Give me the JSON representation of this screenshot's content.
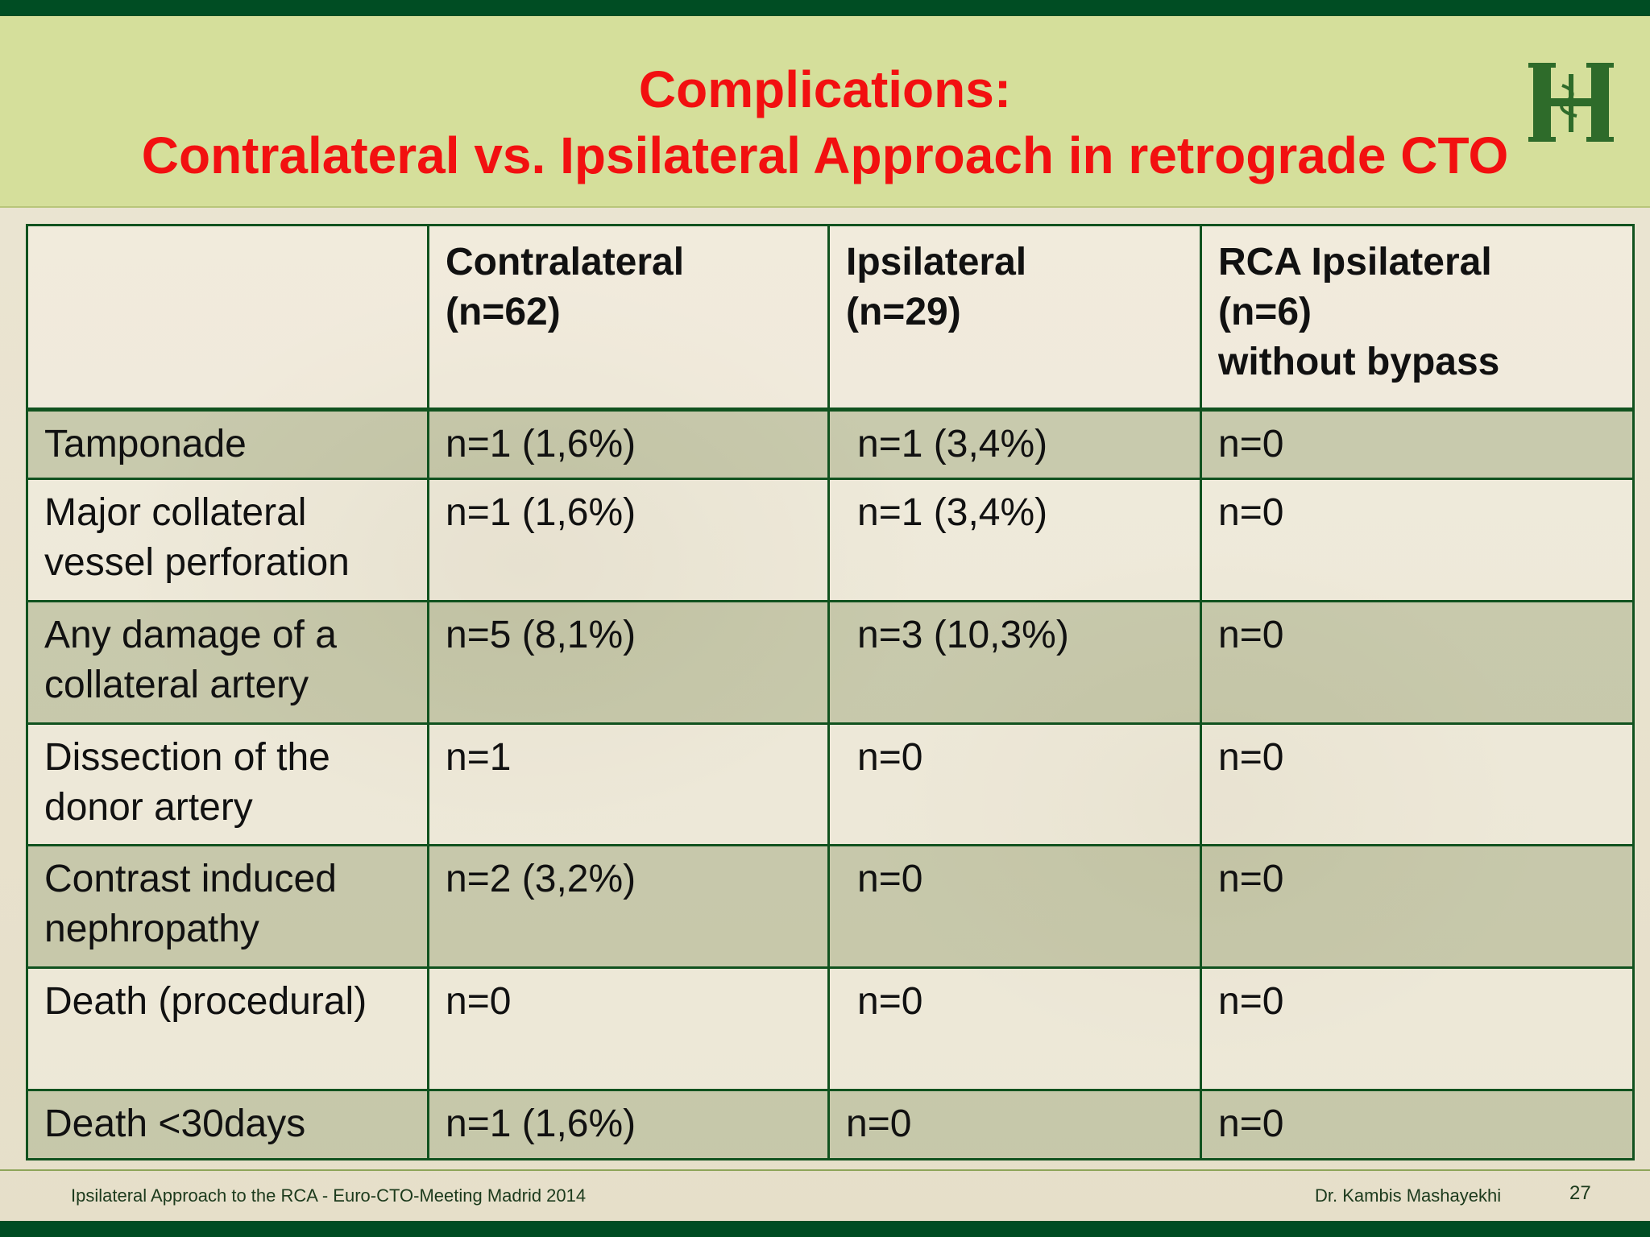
{
  "slide": {
    "title_line1": "Complications:",
    "title_line2": "Contralateral vs. Ipsilateral Approach in retrograde CTO",
    "logo_icon": "hospital-logo-icon",
    "colors": {
      "title": "#f21010",
      "header_bg": "#d5df9b",
      "bar": "#004d23",
      "border": "#11521f"
    }
  },
  "table": {
    "headers": [
      {
        "line1": "",
        "line2": "",
        "line3": ""
      },
      {
        "line1": "Contralateral",
        "line2": "(n=62)",
        "line3": ""
      },
      {
        "line1": "Ipsilateral",
        "line2": "(n=29)",
        "line3": ""
      },
      {
        "line1": "RCA Ipsilateral",
        "line2": "(n=6)",
        "line3": "without bypass"
      }
    ],
    "rows": [
      {
        "label_l1": "Tamponade",
        "label_l2": "",
        "contralateral": "n=1 (1,6%)",
        "ipsilateral": "n=1 (3,4%)",
        "rca": "n=0"
      },
      {
        "label_l1": "Major collateral",
        "label_l2": "vessel perforation",
        "contralateral": "n=1 (1,6%)",
        "ipsilateral": "n=1 (3,4%)",
        "rca": "n=0"
      },
      {
        "label_l1": "Any damage of a",
        "label_l2": "collateral artery",
        "contralateral": "n=5 (8,1%)",
        "ipsilateral": "n=3 (10,3%)",
        "rca": "n=0"
      },
      {
        "label_l1": "Dissection of the",
        "label_l2": "donor artery",
        "contralateral": "n=1",
        "ipsilateral": "n=0",
        "rca": "n=0"
      },
      {
        "label_l1": "Contrast induced",
        "label_l2": "nephropathy",
        "contralateral": "n=2 (3,2%)",
        "ipsilateral": "n=0",
        "rca": "n=0"
      },
      {
        "label_l1": "Death (procedural)",
        "label_l2": "",
        "contralateral": "n=0",
        "ipsilateral": "n=0",
        "rca": "n=0"
      },
      {
        "label_l1": "Death <30days",
        "label_l2": "",
        "contralateral": "n=1 (1,6%)",
        "ipsilateral": "n=0",
        "rca": "n=0"
      }
    ]
  },
  "footer": {
    "left": "Ipsilateral Approach to the RCA - Euro-CTO-Meeting Madrid 2014",
    "right": "Dr. Kambis Mashayekhi",
    "page": "27"
  }
}
